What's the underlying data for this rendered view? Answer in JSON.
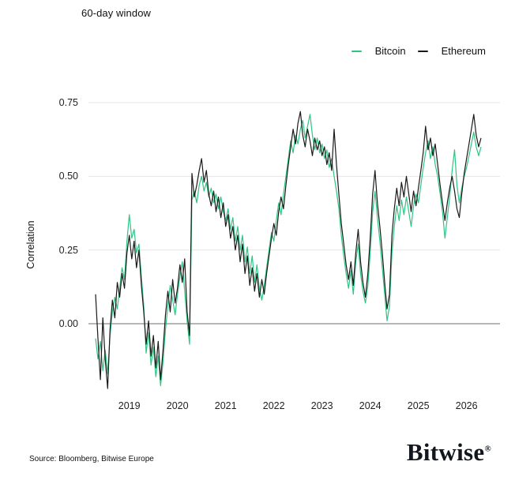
{
  "title": "60-day window",
  "legend": {
    "items": [
      {
        "label": "Bitcoin",
        "color": "#2EC584"
      },
      {
        "label": "Ethereum",
        "color": "#1A1A1A"
      }
    ]
  },
  "y_axis": {
    "label": "Correlation",
    "ticks": [
      {
        "label": "0.75",
        "value": 0.75
      },
      {
        "label": "0.50",
        "value": 0.5
      },
      {
        "label": "0.25",
        "value": 0.25
      },
      {
        "label": "0.00",
        "value": 0.0
      }
    ]
  },
  "x_axis": {
    "ticks": [
      {
        "label": "2019",
        "value": 2019
      },
      {
        "label": "2020",
        "value": 2020
      },
      {
        "label": "2021",
        "value": 2021
      },
      {
        "label": "2022",
        "value": 2022
      },
      {
        "label": "2023",
        "value": 2023
      },
      {
        "label": "2024",
        "value": 2024
      },
      {
        "label": "2025",
        "value": 2025
      },
      {
        "label": "2026",
        "value": 2026
      }
    ]
  },
  "footer": {
    "source": "Source: Bloomberg, Bitwise Europe",
    "brand": "Bitwise",
    "registered_mark": "®"
  },
  "colors": {
    "bitcoin": "#2EC584",
    "ethereum": "#1A1A1A",
    "grid": "#E4E4E4",
    "zero_line": "#8C8C8C",
    "background": "#FFFFFF"
  },
  "chart_data": {
    "type": "line",
    "title": "60-day window",
    "ylabel": "Correlation",
    "xlabel": "",
    "ylim": [
      -0.28,
      0.85
    ],
    "x_range": [
      2018.3,
      2026.3
    ],
    "grid": "horizontal-only",
    "legend_position": "top-right",
    "x_unit": "year (decimal), 60-day rolling correlation",
    "x": {
      "start": 2018.3,
      "step": 0.05,
      "count": 161
    },
    "series": [
      {
        "name": "Bitcoin",
        "color": "#2EC584",
        "values": [
          -0.05,
          -0.12,
          -0.06,
          -0.16,
          -0.09,
          -0.17,
          -0.04,
          0.04,
          0.09,
          0.05,
          0.12,
          0.19,
          0.15,
          0.28,
          0.37,
          0.29,
          0.32,
          0.24,
          0.27,
          0.16,
          0.06,
          -0.1,
          -0.03,
          -0.14,
          -0.08,
          -0.18,
          -0.11,
          -0.21,
          -0.13,
          -0.02,
          0.06,
          0.13,
          0.08,
          0.03,
          0.1,
          0.16,
          0.21,
          0.11,
          0.01,
          -0.07,
          0.42,
          0.45,
          0.41,
          0.47,
          0.5,
          0.45,
          0.48,
          0.43,
          0.46,
          0.41,
          0.44,
          0.39,
          0.43,
          0.38,
          0.35,
          0.39,
          0.32,
          0.36,
          0.28,
          0.33,
          0.25,
          0.3,
          0.21,
          0.26,
          0.17,
          0.23,
          0.14,
          0.2,
          0.12,
          0.08,
          0.13,
          0.19,
          0.25,
          0.31,
          0.28,
          0.35,
          0.41,
          0.37,
          0.44,
          0.5,
          0.56,
          0.62,
          0.58,
          0.64,
          0.61,
          0.66,
          0.69,
          0.63,
          0.67,
          0.71,
          0.64,
          0.59,
          0.63,
          0.58,
          0.61,
          0.56,
          0.59,
          0.53,
          0.56,
          0.5,
          0.45,
          0.39,
          0.3,
          0.23,
          0.17,
          0.12,
          0.18,
          0.1,
          0.21,
          0.27,
          0.17,
          0.11,
          0.07,
          0.13,
          0.24,
          0.38,
          0.45,
          0.36,
          0.28,
          0.19,
          0.1,
          0.01,
          0.06,
          0.24,
          0.33,
          0.4,
          0.35,
          0.42,
          0.37,
          0.43,
          0.38,
          0.33,
          0.4,
          0.44,
          0.41,
          0.47,
          0.53,
          0.58,
          0.62,
          0.56,
          0.6,
          0.54,
          0.5,
          0.44,
          0.38,
          0.29,
          0.36,
          0.43,
          0.52,
          0.59,
          0.47,
          0.41,
          0.46,
          0.5,
          0.53,
          0.57,
          0.61,
          0.65,
          0.6,
          0.57,
          0.6
        ]
      },
      {
        "name": "Ethereum",
        "color": "#1A1A1A",
        "values": [
          0.1,
          -0.05,
          -0.19,
          0.02,
          -0.12,
          -0.22,
          -0.02,
          0.08,
          0.02,
          0.14,
          0.09,
          0.17,
          0.12,
          0.24,
          0.3,
          0.22,
          0.28,
          0.19,
          0.25,
          0.13,
          0.04,
          -0.07,
          0.01,
          -0.11,
          -0.04,
          -0.15,
          -0.06,
          -0.19,
          -0.09,
          0.03,
          0.11,
          0.04,
          0.15,
          0.07,
          0.12,
          0.2,
          0.14,
          0.22,
          0.04,
          -0.04,
          0.51,
          0.43,
          0.47,
          0.52,
          0.56,
          0.48,
          0.52,
          0.44,
          0.4,
          0.45,
          0.38,
          0.43,
          0.36,
          0.41,
          0.33,
          0.37,
          0.29,
          0.33,
          0.25,
          0.3,
          0.21,
          0.27,
          0.17,
          0.23,
          0.13,
          0.19,
          0.11,
          0.17,
          0.09,
          0.15,
          0.1,
          0.17,
          0.23,
          0.29,
          0.34,
          0.3,
          0.38,
          0.43,
          0.39,
          0.47,
          0.54,
          0.6,
          0.66,
          0.61,
          0.68,
          0.72,
          0.64,
          0.6,
          0.66,
          0.62,
          0.57,
          0.63,
          0.59,
          0.62,
          0.57,
          0.6,
          0.54,
          0.58,
          0.52,
          0.66,
          0.54,
          0.44,
          0.34,
          0.27,
          0.2,
          0.15,
          0.21,
          0.13,
          0.24,
          0.32,
          0.21,
          0.14,
          0.09,
          0.17,
          0.29,
          0.44,
          0.52,
          0.41,
          0.33,
          0.24,
          0.14,
          0.05,
          0.1,
          0.3,
          0.39,
          0.46,
          0.4,
          0.48,
          0.43,
          0.5,
          0.44,
          0.38,
          0.45,
          0.4,
          0.46,
          0.52,
          0.58,
          0.67,
          0.59,
          0.63,
          0.57,
          0.61,
          0.54,
          0.47,
          0.41,
          0.35,
          0.41,
          0.46,
          0.5,
          0.45,
          0.39,
          0.36,
          0.44,
          0.51,
          0.56,
          0.61,
          0.66,
          0.71,
          0.64,
          0.6,
          0.63
        ]
      }
    ]
  }
}
